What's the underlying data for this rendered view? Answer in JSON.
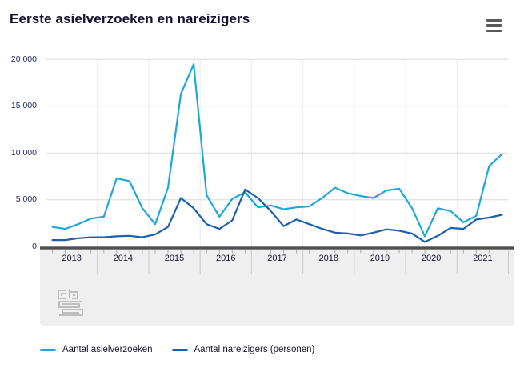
{
  "header": {
    "title": "Eerste asielverzoeken en nareizigers",
    "menu_icon": "hamburger-icon"
  },
  "branding": {
    "logo": "cbs-logo"
  },
  "chart_data": {
    "type": "line",
    "title": "Eerste asielverzoeken en nareizigers",
    "xlabel": "",
    "ylabel": "",
    "x_years": [
      "2013",
      "2014",
      "2015",
      "2016",
      "2017",
      "2018",
      "2019",
      "2020",
      "2021"
    ],
    "points_per_year": 4,
    "x_frequency": "quarterly",
    "ylim": [
      0,
      20000
    ],
    "yticks": [
      {
        "value": 0,
        "label": "0"
      },
      {
        "value": 5000,
        "label": "5 000"
      },
      {
        "value": 10000,
        "label": "10 000"
      },
      {
        "value": 15000,
        "label": "15 000"
      },
      {
        "value": 20000,
        "label": "20 000"
      }
    ],
    "grid": true,
    "legend_position": "bottom",
    "series": [
      {
        "name": "Aantal asielverzoeken",
        "color": "#1ca8d9",
        "values": [
          2100,
          1900,
          2400,
          3000,
          3200,
          7300,
          7000,
          4100,
          2400,
          6300,
          16300,
          19500,
          5500,
          3200,
          5100,
          5800,
          4200,
          4400,
          4000,
          4200,
          4300,
          5200,
          6300,
          5700,
          5400,
          5200,
          6000,
          6200,
          4100,
          1100,
          4100,
          3800,
          2600,
          3300,
          8600,
          9900
        ]
      },
      {
        "name": "Aantal nareizigers (personen)",
        "color": "#1c60ac",
        "values": [
          700,
          700,
          900,
          1000,
          1000,
          1100,
          1150,
          1000,
          1300,
          2100,
          5200,
          4100,
          2400,
          1900,
          2800,
          6100,
          5200,
          3800,
          2200,
          2900,
          2400,
          1900,
          1500,
          1400,
          1200,
          1500,
          1850,
          1700,
          1400,
          500,
          1150,
          2000,
          1900,
          2900,
          3100,
          3400
        ]
      }
    ]
  }
}
